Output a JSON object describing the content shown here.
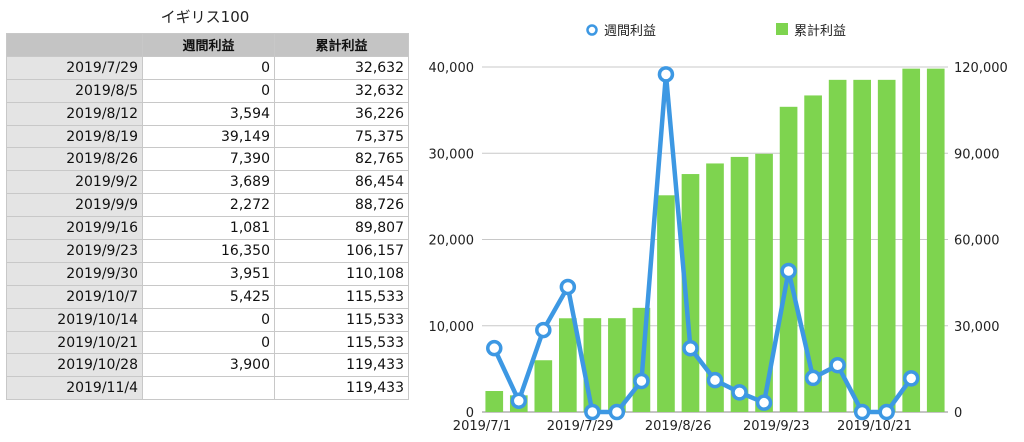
{
  "table": {
    "title": "イギリス100",
    "headers": [
      "",
      "週間利益",
      "累計利益"
    ],
    "rows": [
      {
        "date": "2019/7/29",
        "weekly": "0",
        "cumulative": "32,632"
      },
      {
        "date": "2019/8/5",
        "weekly": "0",
        "cumulative": "32,632"
      },
      {
        "date": "2019/8/12",
        "weekly": "3,594",
        "cumulative": "36,226"
      },
      {
        "date": "2019/8/19",
        "weekly": "39,149",
        "cumulative": "75,375"
      },
      {
        "date": "2019/8/26",
        "weekly": "7,390",
        "cumulative": "82,765"
      },
      {
        "date": "2019/9/2",
        "weekly": "3,689",
        "cumulative": "86,454"
      },
      {
        "date": "2019/9/9",
        "weekly": "2,272",
        "cumulative": "88,726"
      },
      {
        "date": "2019/9/16",
        "weekly": "1,081",
        "cumulative": "89,807"
      },
      {
        "date": "2019/9/23",
        "weekly": "16,350",
        "cumulative": "106,157"
      },
      {
        "date": "2019/9/30",
        "weekly": "3,951",
        "cumulative": "110,108"
      },
      {
        "date": "2019/10/7",
        "weekly": "5,425",
        "cumulative": "115,533"
      },
      {
        "date": "2019/10/14",
        "weekly": "0",
        "cumulative": "115,533"
      },
      {
        "date": "2019/10/21",
        "weekly": "0",
        "cumulative": "115,533"
      },
      {
        "date": "2019/10/28",
        "weekly": "3,900",
        "cumulative": "119,433"
      },
      {
        "date": "2019/11/4",
        "weekly": "",
        "cumulative": "119,433"
      }
    ]
  },
  "chart_data": {
    "type": "bar+line",
    "x": [
      "2019/7/1",
      "2019/7/8",
      "2019/7/15",
      "2019/7/22",
      "2019/7/29",
      "2019/8/5",
      "2019/8/12",
      "2019/8/19",
      "2019/8/26",
      "2019/9/2",
      "2019/9/9",
      "2019/9/16",
      "2019/9/23",
      "2019/9/30",
      "2019/10/7",
      "2019/10/14",
      "2019/10/21",
      "2019/10/28",
      "2019/11/4"
    ],
    "x_tick_labels": [
      "2019/7/1",
      "2019/7/29",
      "2019/8/26",
      "2019/9/23",
      "2019/10/21"
    ],
    "x_tick_indices": [
      0,
      4,
      8,
      12,
      16
    ],
    "series": [
      {
        "name": "週間利益",
        "type": "line",
        "axis": "left",
        "color": "#3d98e3",
        "values": [
          7400,
          1300,
          9500,
          14500,
          0,
          0,
          3594,
          39149,
          7390,
          3689,
          2272,
          1081,
          16350,
          3951,
          5425,
          0,
          0,
          3900,
          null
        ]
      },
      {
        "name": "累計利益",
        "type": "bar",
        "axis": "right",
        "color": "#7ed44f",
        "values": [
          7300,
          5800,
          18000,
          32600,
          32632,
          32632,
          36226,
          75375,
          82765,
          86454,
          88726,
          89807,
          106157,
          110108,
          115533,
          115533,
          115533,
          119433,
          119433
        ]
      }
    ],
    "left_axis": {
      "min": 0,
      "max": 40000,
      "ticks": [
        "0",
        "10,000",
        "20,000",
        "30,000",
        "40,000"
      ]
    },
    "right_axis": {
      "min": 0,
      "max": 120000,
      "ticks": [
        "0",
        "30,000",
        "60,000",
        "90,000",
        "120,000"
      ]
    },
    "grid": true,
    "legend": "top"
  }
}
